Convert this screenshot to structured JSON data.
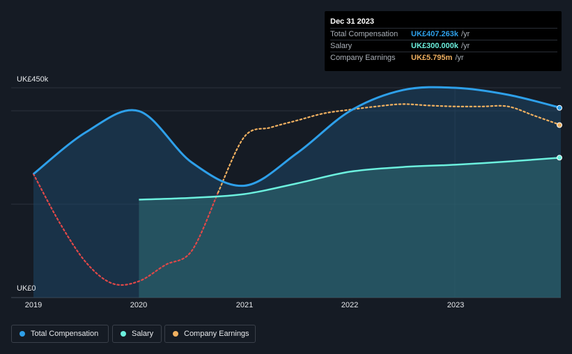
{
  "tooltip": {
    "date": "Dec 31 2023",
    "rows": [
      {
        "label": "Total Compensation",
        "value": "UK£407.263k",
        "unit": "/yr",
        "color": "#2ea0ea"
      },
      {
        "label": "Salary",
        "value": "UK£300.000k",
        "unit": "/yr",
        "color": "#6cf0de"
      },
      {
        "label": "Company Earnings",
        "value": "UK£5.795m",
        "unit": "/yr",
        "color": "#f0b060"
      }
    ]
  },
  "legend": [
    {
      "label": "Total Compensation",
      "color": "#2ea0ea"
    },
    {
      "label": "Salary",
      "color": "#6cf0de"
    },
    {
      "label": "Company Earnings",
      "color": "#f0b060"
    }
  ],
  "chart_data": {
    "type": "area",
    "title": "",
    "xlabel": "",
    "ylabel": "",
    "ylim": [
      0,
      450
    ],
    "y_tick_labels": [
      "UK£0",
      "UK£450k"
    ],
    "x_tick_labels": [
      "2019",
      "2020",
      "2021",
      "2022",
      "2023"
    ],
    "x_ticks": [
      2019,
      2020,
      2021,
      2022,
      2023
    ],
    "xlim": [
      2018.8,
      2024.0
    ],
    "series": [
      {
        "name": "Total Compensation",
        "color": "#2ea0ea",
        "unit": "UK£k",
        "x": [
          2019.0,
          2019.5,
          2020.0,
          2020.5,
          2021.0,
          2021.5,
          2022.0,
          2022.5,
          2023.0,
          2023.5,
          2024.0
        ],
        "y": [
          265,
          355,
          400,
          290,
          240,
          310,
          400,
          445,
          450,
          435,
          407
        ]
      },
      {
        "name": "Salary",
        "color": "#6cf0de",
        "unit": "UK£k",
        "x": [
          2020.0,
          2020.5,
          2021.0,
          2021.5,
          2022.0,
          2022.5,
          2023.0,
          2023.5,
          2024.0
        ],
        "y": [
          210,
          214,
          222,
          245,
          270,
          280,
          285,
          292,
          300
        ]
      },
      {
        "name": "Company Earnings",
        "color": "#f0b060",
        "neg_color": "#e04848",
        "unit": "scaled",
        "dashed": true,
        "x": [
          2019.0,
          2019.25,
          2019.5,
          2019.75,
          2020.0,
          2020.25,
          2020.5,
          2020.75,
          2021.0,
          2021.25,
          2021.5,
          2021.75,
          2022.0,
          2022.25,
          2022.5,
          2022.75,
          2023.0,
          2023.25,
          2023.5,
          2023.75,
          2024.0
        ],
        "y": [
          265,
          160,
          75,
          30,
          35,
          70,
          100,
          225,
          345,
          365,
          380,
          395,
          403,
          410,
          415,
          412,
          410,
          410,
          410,
          390,
          370
        ]
      }
    ]
  }
}
